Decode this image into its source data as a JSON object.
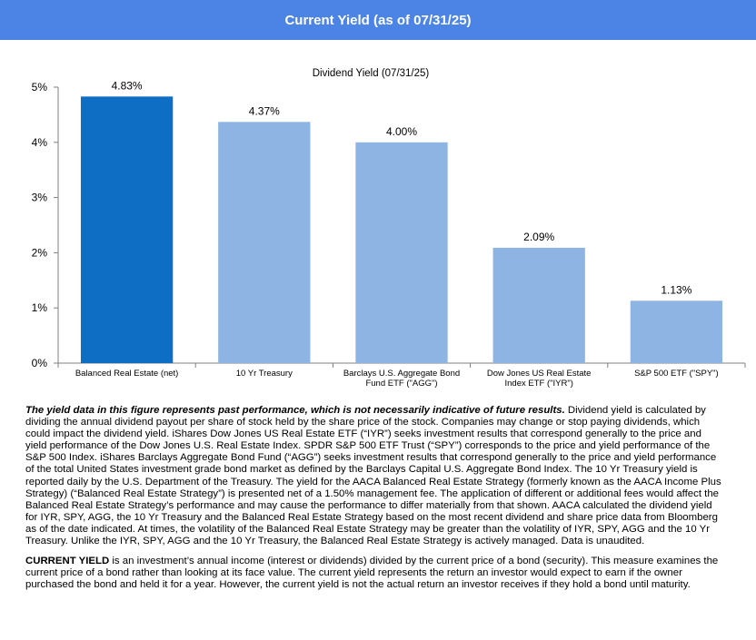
{
  "header": {
    "title": "Current Yield  (as of 07/31/25)"
  },
  "chart_data": {
    "type": "bar",
    "title": "Dividend Yield (07/31/25)",
    "categories": [
      "Balanced Real Estate (net)",
      "10 Yr Treasury",
      "Barclays U.S. Aggregate Bond Fund ETF (\"AGG\")",
      "Dow Jones US Real Estate Index ETF (\"IYR\")",
      "S&P 500 ETF (\"SPY\")"
    ],
    "category_lines": [
      [
        "Balanced Real Estate (net)"
      ],
      [
        "10 Yr Treasury"
      ],
      [
        "Barclays U.S. Aggregate Bond",
        "Fund ETF (\"AGG\")"
      ],
      [
        "Dow Jones US Real Estate",
        "Index ETF (\"IYR\")"
      ],
      [
        "S&P 500 ETF (\"SPY\")"
      ]
    ],
    "values": [
      4.83,
      4.37,
      4.0,
      2.09,
      1.13
    ],
    "data_labels": [
      "4.83%",
      "4.37%",
      "4.00%",
      "2.09%",
      "1.13%"
    ],
    "bar_colors": [
      "#0d6ec4",
      "#8eb4e3",
      "#8eb4e3",
      "#8eb4e3",
      "#8eb4e3"
    ],
    "ylim": [
      0,
      5
    ],
    "yticks": [
      "0%",
      "1%",
      "2%",
      "3%",
      "4%",
      "5%"
    ],
    "xlabel": "",
    "ylabel": "",
    "grid": false,
    "legend": "none"
  },
  "notes": {
    "p1_bold": "The yield data in this figure represents past performance, which is not necessarily indicative of future results.",
    "p1_text": " Dividend yield is calculated by dividing the annual dividend payout per share of stock held by the share price of the stock. Companies may change or stop paying dividends, which could impact the dividend yield. iShares Dow Jones US Real Estate ETF (“IYR”)  seeks investment results that correspond generally to the price and yield performance of the Dow Jones U.S. Real Estate Index. SPDR S&P 500 ETF Trust (“SPY”) corresponds to the price and yield performance of the S&P 500 Index. iShares Barclays Aggregate Bond Fund (“AGG”)  seeks investment results that correspond generally to the price and yield performance of the total United States investment grade bond market as defined by the Barclays Capital U.S. Aggregate Bond Index. The 10 Yr Treasury yield is reported daily by the U.S. Department of the Treasury. The yield for the AACA  Balanced Real Estate Strategy (formerly known as the AACA  Income Plus Strategy) (“Balanced Real Estate Strategy”) is presented net of a 1.50% management fee. The application of different or additional fees would affect the Balanced Real Estate Strategy’s performance and may cause the performance to differ materially from that shown. AACA  calculated the dividend yield for IYR,  SPY,  AGG,  the 10 Yr Treasury and the Balanced Real Estate Strategy  based on the most recent dividend and share price data from Bloomberg as of the date indicated. At times, the volatility of the Balanced Real Estate Strategy may be greater than the volatility of IYR,  SPY,  AGG  and the 10 Yr Treasury.  Unlike the IYR,  SPY, AGG  and the 10 Yr Treasury, the Balanced Real Estate Strategy is actively managed. Data is unaudited.",
    "p2_bold": "CURRENT  YIELD",
    "p2_text": "  is an investment’s annual income (interest or dividends) divided by the current price of a bond (security). This measure examines the current price of a bond rather than looking at its face value.  The current yield represents the return an investor would expect to earn if the owner purchased the bond and held it for a year.  However, the current yield is not the actual return an investor receives if they hold a bond until maturity."
  }
}
